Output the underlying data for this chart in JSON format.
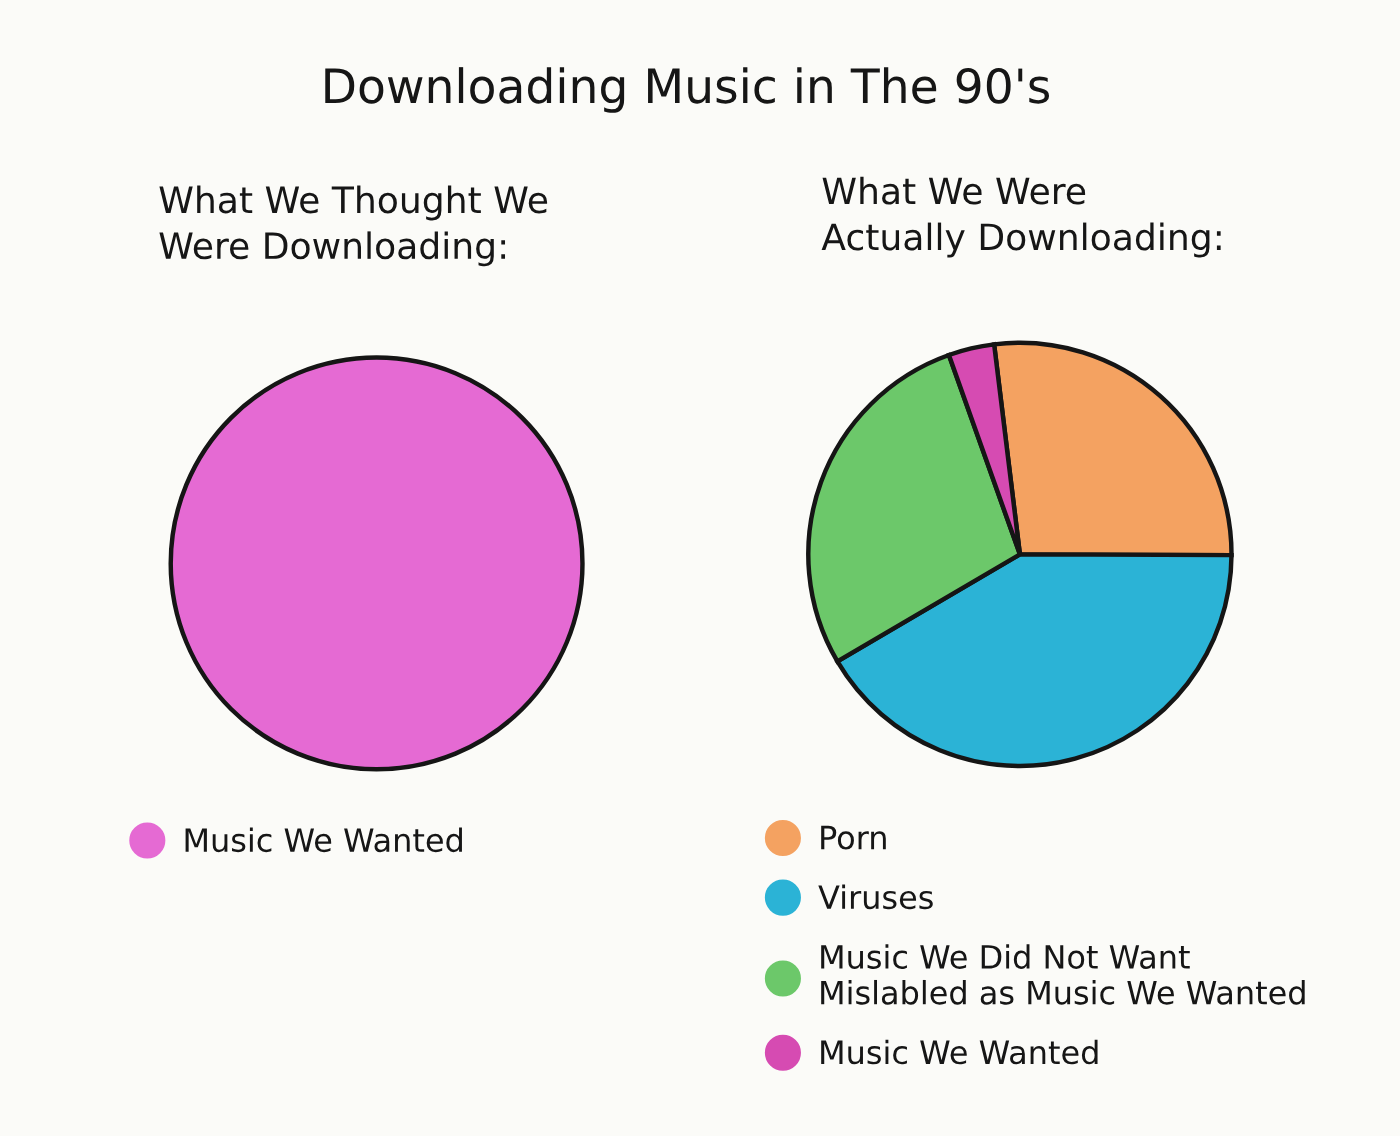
{
  "chart_data": [
    {
      "type": "pie",
      "title": "Downloading Music in The 90's",
      "subtitle": "What We Thought We\nWere Downloading:",
      "categories": [
        "Music We Wanted"
      ],
      "values": [
        100
      ],
      "colors": [
        "#e56ad3"
      ],
      "legend": "bottom"
    },
    {
      "type": "pie",
      "subtitle": "What We Were\nActually Downloading:",
      "categories": [
        "Porn",
        "Viruses",
        "Music We Did Not Want\nMislabled as Music We Wanted",
        "Music We Wanted"
      ],
      "values": [
        27,
        41.5,
        28,
        3.5
      ],
      "colors": [
        "#f4a261",
        "#2bb3d6",
        "#6cc86a",
        "#d64bb2"
      ],
      "legend": "bottom"
    }
  ]
}
